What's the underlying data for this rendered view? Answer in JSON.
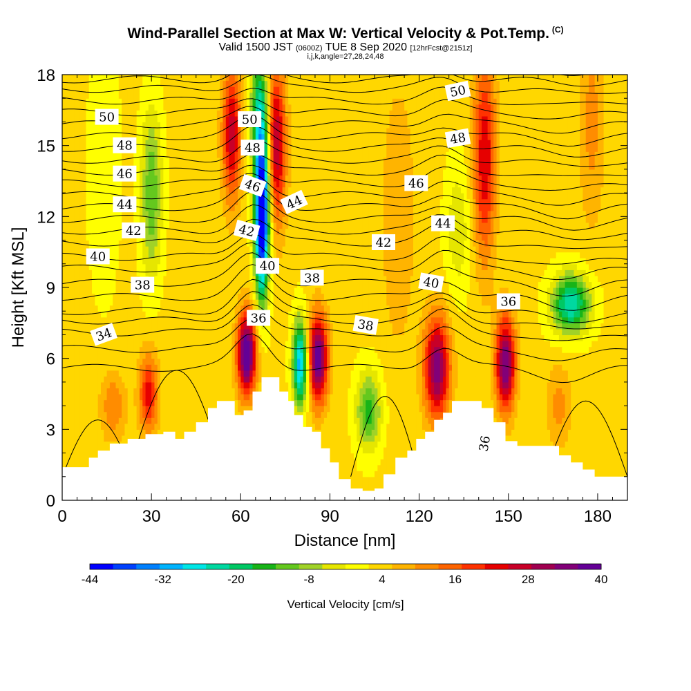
{
  "header": {
    "title": "Wind-Parallel Section at Max W: Vertical Velocity & Pot.Temp.",
    "title_mark": "(C)",
    "valid": "Valid 1500 JST",
    "valid_utc": "(0600Z)",
    "date": "TUE 8 Sep 2020",
    "forecast": "[12hrFcst@2151z]",
    "params": "i,j,k,angle=27,28,24,48"
  },
  "chart_data": {
    "type": "heatmap",
    "xlabel": "Distance [nm]",
    "ylabel": "Height [Kft MSL]",
    "xlim": [
      0,
      190
    ],
    "ylim": [
      0,
      18
    ],
    "xticks": [
      0,
      30,
      60,
      90,
      120,
      150,
      180
    ],
    "yticks": [
      0,
      3,
      6,
      9,
      12,
      15,
      18
    ],
    "colorbar": {
      "label": "Vertical Velocity [cm/s]",
      "range": [
        -44,
        40
      ],
      "tick_labels": [
        -44,
        -32,
        -20,
        -8,
        4,
        16,
        28,
        40
      ],
      "colors": [
        "#0000ff",
        "#0040ff",
        "#0080ff",
        "#00b4ff",
        "#00e6e6",
        "#00d8a0",
        "#00c864",
        "#18b418",
        "#64c81e",
        "#a0d228",
        "#e6e600",
        "#ffff00",
        "#ffd700",
        "#ffb400",
        "#ff8c00",
        "#ff6400",
        "#ff3200",
        "#e60000",
        "#c80028",
        "#a00050",
        "#820078",
        "#640096"
      ]
    },
    "w_updraft_cores": [
      {
        "x": 62,
        "z": 6.2,
        "w": 40
      },
      {
        "x": 86,
        "z": 6.0,
        "w": 36
      },
      {
        "x": 126,
        "z": 5.6,
        "w": 32
      },
      {
        "x": 149,
        "z": 5.8,
        "w": 34
      },
      {
        "x": 29,
        "z": 4.5,
        "w": 20
      },
      {
        "x": 73,
        "z": 14.5,
        "w": 30
      },
      {
        "x": 57,
        "z": 15.0,
        "w": 24
      },
      {
        "x": 142,
        "z": 14.5,
        "w": 22
      }
    ],
    "w_downdraft_cores": [
      {
        "x": 67,
        "z": 12.0,
        "w": -40
      },
      {
        "x": 80,
        "z": 5.8,
        "w": -34
      },
      {
        "x": 103,
        "z": 3.8,
        "w": -18
      },
      {
        "x": 171,
        "z": 8.3,
        "w": -28
      },
      {
        "x": 30,
        "z": 13.0,
        "w": -16
      }
    ],
    "theta_contours_label": "Pot.Temp.",
    "theta_labels": [
      "34",
      "36",
      "36",
      "36",
      "38",
      "38",
      "38",
      "40",
      "40",
      "40",
      "42",
      "42",
      "42",
      "44",
      "44",
      "44",
      "46",
      "46",
      "46",
      "48",
      "48",
      "48",
      "50",
      "50",
      "50"
    ],
    "terrain_top_kft": [
      [
        0,
        1.4
      ],
      [
        6,
        1.4
      ],
      [
        9,
        1.8
      ],
      [
        12,
        2.1
      ],
      [
        16,
        2.4
      ],
      [
        22,
        2.6
      ],
      [
        28,
        2.8
      ],
      [
        34,
        2.9
      ],
      [
        38,
        2.6
      ],
      [
        41,
        2.9
      ],
      [
        45,
        3.3
      ],
      [
        49,
        3.9
      ],
      [
        52,
        4.2
      ],
      [
        56,
        4.2
      ],
      [
        58,
        3.6
      ],
      [
        61,
        3.8
      ],
      [
        64,
        4.6
      ],
      [
        67,
        5.2
      ],
      [
        71,
        5.2
      ],
      [
        73,
        4.6
      ],
      [
        76,
        4.2
      ],
      [
        78,
        3.6
      ],
      [
        81,
        3.1
      ],
      [
        84,
        2.9
      ],
      [
        87,
        2.2
      ],
      [
        90,
        1.6
      ],
      [
        93,
        0.9
      ],
      [
        97,
        0.5
      ],
      [
        101,
        0.4
      ],
      [
        105,
        0.5
      ],
      [
        108,
        1.1
      ],
      [
        112,
        1.8
      ],
      [
        116,
        2.1
      ],
      [
        119,
        2.6
      ],
      [
        122,
        2.9
      ],
      [
        125,
        3.4
      ],
      [
        128,
        3.7
      ],
      [
        131,
        4.2
      ],
      [
        137,
        4.2
      ],
      [
        141,
        3.9
      ],
      [
        145,
        3.3
      ],
      [
        149,
        2.5
      ],
      [
        153,
        2.3
      ],
      [
        163,
        2.3
      ],
      [
        167,
        1.9
      ],
      [
        171,
        1.6
      ],
      [
        175,
        1.3
      ],
      [
        179,
        1.0
      ],
      [
        185,
        1.0
      ],
      [
        190,
        1.0
      ]
    ]
  }
}
